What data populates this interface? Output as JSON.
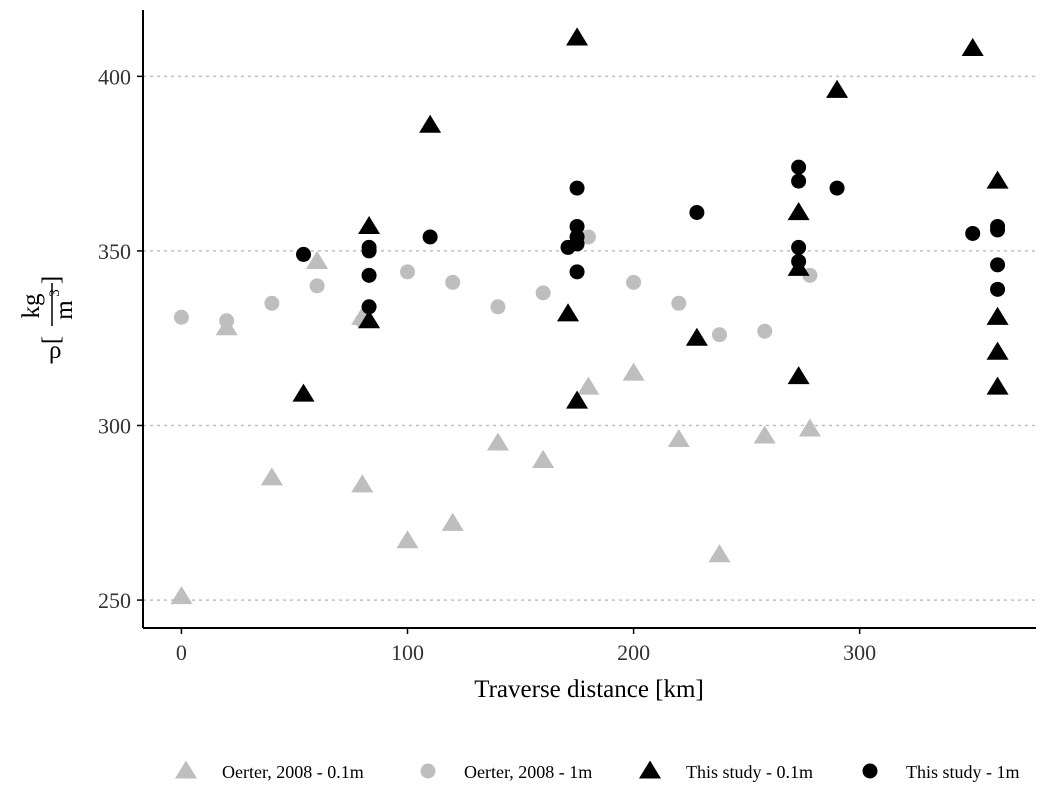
{
  "chart_data": {
    "type": "scatter",
    "title": "",
    "xlabel": "Traverse distance [km]",
    "ylabel": {
      "symbol": "ρ",
      "numerator": "kg",
      "denominator": "m",
      "exponent": "3"
    },
    "xlim": [
      -17,
      378
    ],
    "ylim": [
      242,
      419
    ],
    "xticks": [
      0,
      100,
      200,
      300
    ],
    "yticks": [
      250,
      300,
      350,
      400
    ],
    "grid": "horizontal dotted at y ticks",
    "legend_position": "bottom",
    "series": [
      {
        "name": "Oerter, 2008 - 0.1m",
        "marker": "triangle",
        "color": "#bebebe",
        "points": [
          [
            0,
            251
          ],
          [
            20,
            328
          ],
          [
            40,
            285
          ],
          [
            60,
            347
          ],
          [
            80,
            283
          ],
          [
            80,
            331
          ],
          [
            100,
            267
          ],
          [
            120,
            272
          ],
          [
            140,
            295
          ],
          [
            160,
            290
          ],
          [
            180,
            311
          ],
          [
            200,
            315
          ],
          [
            220,
            296
          ],
          [
            238,
            263
          ],
          [
            258,
            297
          ],
          [
            278,
            299
          ]
        ]
      },
      {
        "name": "Oerter, 2008 - 1m",
        "marker": "circle",
        "color": "#bebebe",
        "points": [
          [
            0,
            331
          ],
          [
            20,
            330
          ],
          [
            40,
            335
          ],
          [
            60,
            340
          ],
          [
            80,
            330
          ],
          [
            100,
            344
          ],
          [
            120,
            341
          ],
          [
            140,
            334
          ],
          [
            160,
            338
          ],
          [
            180,
            354
          ],
          [
            200,
            341
          ],
          [
            220,
            335
          ],
          [
            238,
            326
          ],
          [
            258,
            327
          ],
          [
            278,
            343
          ]
        ]
      },
      {
        "name": "This study - 0.1m",
        "marker": "triangle",
        "color": "#000000",
        "points": [
          [
            54,
            309
          ],
          [
            83,
            357
          ],
          [
            83,
            330
          ],
          [
            110,
            386
          ],
          [
            171,
            332
          ],
          [
            175,
            411
          ],
          [
            175,
            307
          ],
          [
            228,
            325
          ],
          [
            273,
            361
          ],
          [
            273,
            345
          ],
          [
            273,
            314
          ],
          [
            290,
            396
          ],
          [
            350,
            408
          ],
          [
            361,
            370
          ],
          [
            361,
            331
          ],
          [
            361,
            321
          ],
          [
            361,
            311
          ]
        ]
      },
      {
        "name": "This study - 1m",
        "marker": "circle",
        "color": "#000000",
        "points": [
          [
            54,
            349
          ],
          [
            83,
            351
          ],
          [
            83,
            350
          ],
          [
            83,
            343
          ],
          [
            83,
            334
          ],
          [
            110,
            354
          ],
          [
            171,
            351
          ],
          [
            175,
            368
          ],
          [
            175,
            357
          ],
          [
            175,
            354
          ],
          [
            175,
            352
          ],
          [
            175,
            344
          ],
          [
            228,
            361
          ],
          [
            273,
            374
          ],
          [
            273,
            370
          ],
          [
            273,
            351
          ],
          [
            273,
            347
          ],
          [
            290,
            368
          ],
          [
            350,
            355
          ],
          [
            361,
            357
          ],
          [
            361,
            356
          ],
          [
            361,
            346
          ],
          [
            361,
            339
          ]
        ]
      }
    ]
  }
}
